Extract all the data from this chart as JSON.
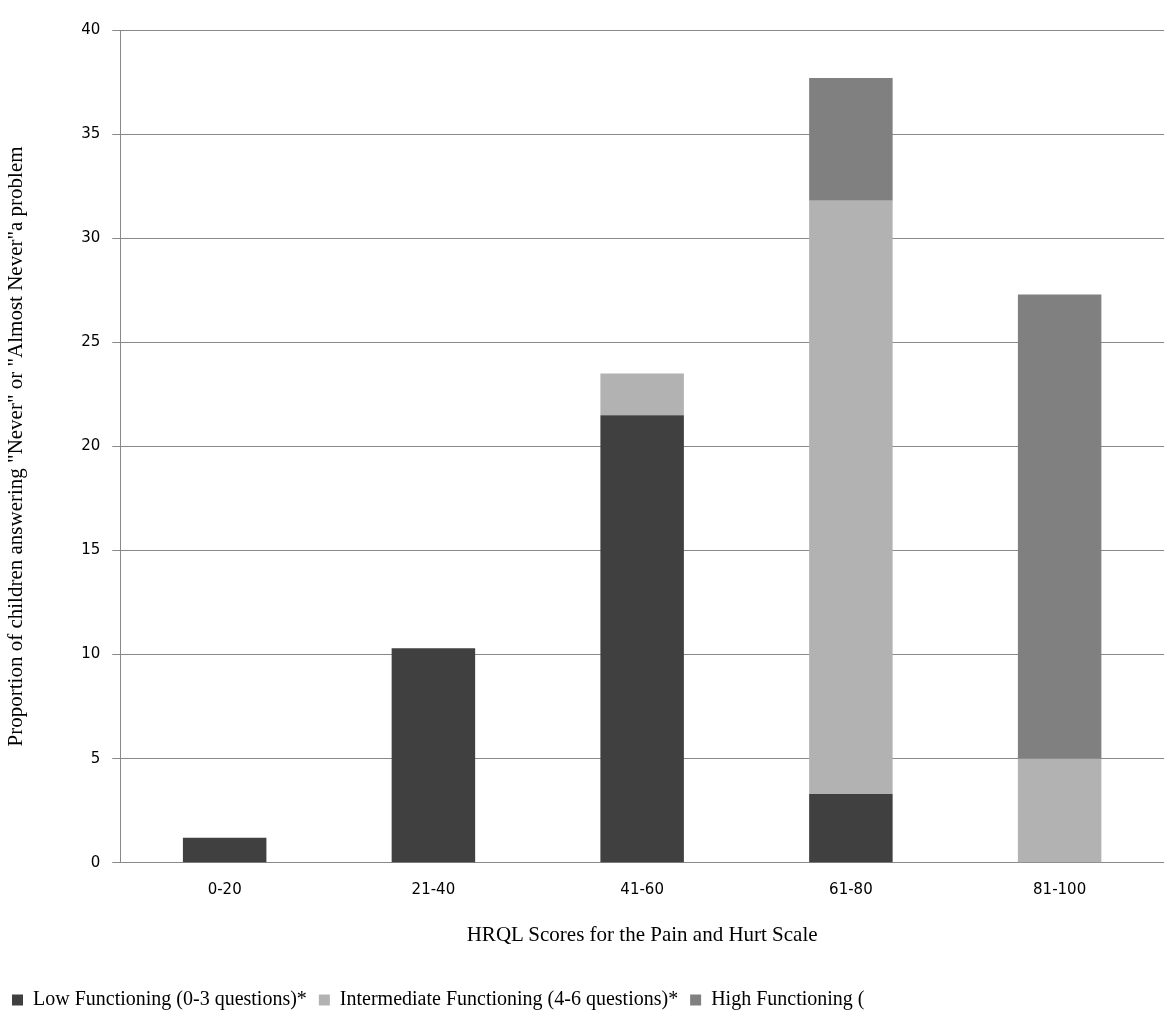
{
  "chart_data": {
    "type": "bar",
    "stacked": true,
    "xlabel": "HRQL Scores for the Pain and Hurt Scale",
    "ylabel": "Proportion of children answering \"Never\" or \"Almost Never\"a problem",
    "categories": [
      "0-20",
      "21-40",
      "41-60",
      "61-80",
      "81-100"
    ],
    "series": [
      {
        "name": "Low Functioning (0-3 questions)*",
        "color": "#404040",
        "values": [
          1.2,
          10.3,
          21.5,
          3.3,
          0
        ]
      },
      {
        "name": "Intermediate Functioning (4-6 questions)*",
        "color": "#b2b2b2",
        "values": [
          0,
          0,
          2.0,
          28.5,
          5.0
        ]
      },
      {
        "name": "High Functioning (",
        "color": "#808080",
        "values": [
          0,
          0,
          0,
          5.9,
          22.3
        ]
      }
    ],
    "ylim": [
      0,
      40
    ],
    "yticks": [
      0,
      5,
      10,
      15,
      20,
      25,
      30,
      35,
      40
    ],
    "grid": "y",
    "legend": "bottom"
  }
}
